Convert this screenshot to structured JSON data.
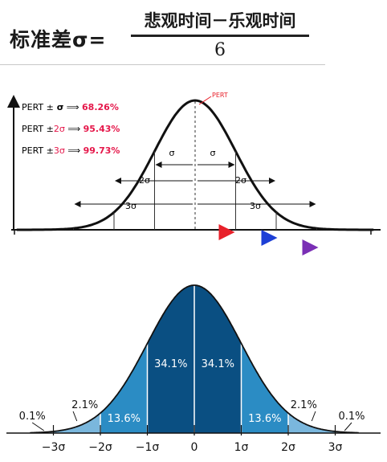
{
  "formula": {
    "label": "标准差σ=",
    "numerator": "悲观时间－乐观时间",
    "denominator": "6"
  },
  "pert": {
    "peak_label": "PERT",
    "legend": [
      {
        "prefix": "PERT ±",
        "sigma": " σ",
        "arrow": " ⟹ ",
        "pct": "68.26%"
      },
      {
        "prefix": "PERT ±",
        "sigma": "2σ",
        "arrow": " ⟹ ",
        "pct": "95.43%"
      },
      {
        "prefix": "PERT ±",
        "sigma": "3σ",
        "arrow": " ⟹ ",
        "pct": "99.73%"
      }
    ],
    "spans": [
      "σ",
      "σ",
      "2σ",
      "2σ",
      "3σ",
      "3σ"
    ],
    "colors": {
      "pct": "#e5174a",
      "red_arrow": "#e8202a",
      "blue_arrow": "#1d3fd6",
      "purple_arrow": "#7a2fb5"
    }
  },
  "chart_data": {
    "type": "area",
    "x_ticks": [
      "−3σ",
      "−2σ",
      "−1σ",
      "0",
      "1σ",
      "2σ",
      "3σ"
    ],
    "bands": [
      {
        "from": -3.5,
        "to": -3,
        "label": "0.1%"
      },
      {
        "from": -3,
        "to": -2,
        "label": "2.1%"
      },
      {
        "from": -2,
        "to": -1,
        "label": "13.6%"
      },
      {
        "from": -1,
        "to": 0,
        "label": "34.1%"
      },
      {
        "from": 0,
        "to": 1,
        "label": "34.1%"
      },
      {
        "from": 1,
        "to": 2,
        "label": "13.6%"
      },
      {
        "from": 2,
        "to": 3,
        "label": "2.1%"
      },
      {
        "from": 3,
        "to": 3.5,
        "label": "0.1%"
      }
    ],
    "colors": {
      "band1": "#0a4f82",
      "band2": "#2b8cc4",
      "band3": "#7ab7dd",
      "band4": "#c5dff0"
    }
  }
}
